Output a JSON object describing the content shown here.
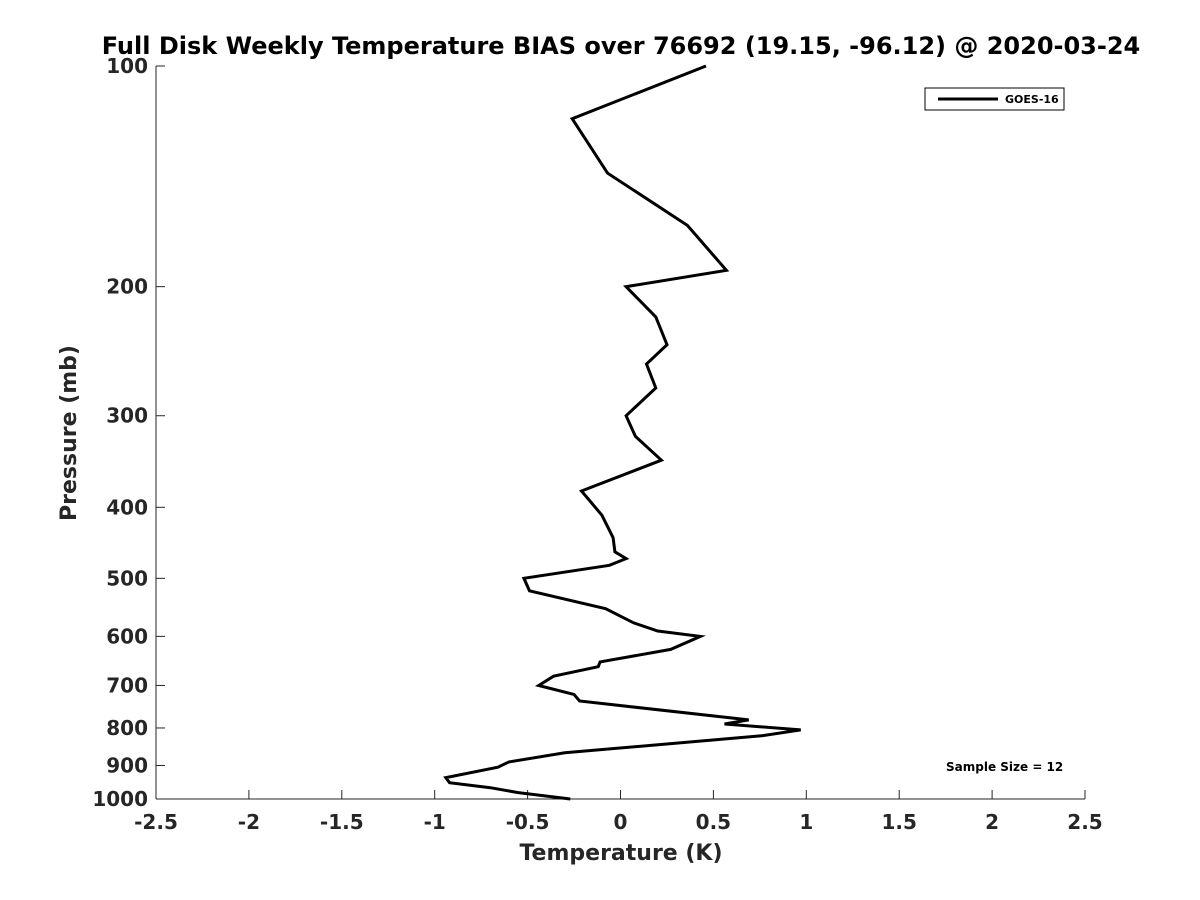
{
  "chart_data": {
    "type": "line",
    "title": "Full Disk Weekly Temperature BIAS over 76692 (19.15, -96.12) @ 2020-03-24",
    "xlabel": "Temperature (K)",
    "ylabel": "Pressure (mb)",
    "xlim": [
      -2.5,
      2.5
    ],
    "ylim": [
      100,
      1000
    ],
    "y_scale": "log",
    "y_reversed": true,
    "grid": false,
    "legend_position": "top-right",
    "x_ticks": [
      -2.5,
      -2,
      -1.5,
      -1,
      -0.5,
      0,
      0.5,
      1,
      1.5,
      2,
      2.5
    ],
    "x_tick_labels": [
      "-2.5",
      "-2",
      "-1.5",
      "-1",
      "-0.5",
      "0",
      "0.5",
      "1",
      "1.5",
      "2",
      "2.5"
    ],
    "y_ticks": [
      100,
      200,
      300,
      400,
      500,
      600,
      700,
      800,
      900,
      1000
    ],
    "y_tick_labels": [
      "100",
      "200",
      "300",
      "400",
      "500",
      "600",
      "700",
      "800",
      "900",
      "1000"
    ],
    "series": [
      {
        "name": "GOES-16",
        "color": "#000000",
        "points": [
          [
            0.46,
            100
          ],
          [
            -0.26,
            118
          ],
          [
            -0.07,
            140
          ],
          [
            0.36,
            165
          ],
          [
            0.57,
            190
          ],
          [
            0.03,
            200
          ],
          [
            0.19,
            220
          ],
          [
            0.25,
            240
          ],
          [
            0.14,
            255
          ],
          [
            0.19,
            275
          ],
          [
            0.03,
            300
          ],
          [
            0.08,
            320
          ],
          [
            0.22,
            345
          ],
          [
            -0.21,
            380
          ],
          [
            -0.1,
            410
          ],
          [
            -0.04,
            440
          ],
          [
            -0.03,
            460
          ],
          [
            0.03,
            470
          ],
          [
            -0.06,
            480
          ],
          [
            -0.52,
            500
          ],
          [
            -0.49,
            520
          ],
          [
            -0.08,
            550
          ],
          [
            0.07,
            575
          ],
          [
            0.2,
            590
          ],
          [
            0.43,
            600
          ],
          [
            0.27,
            625
          ],
          [
            -0.11,
            650
          ],
          [
            -0.12,
            660
          ],
          [
            -0.36,
            680
          ],
          [
            -0.44,
            700
          ],
          [
            -0.25,
            720
          ],
          [
            -0.22,
            735
          ],
          [
            0.69,
            780
          ],
          [
            0.56,
            790
          ],
          [
            0.97,
            805
          ],
          [
            0.76,
            820
          ],
          [
            -0.3,
            865
          ],
          [
            -0.6,
            890
          ],
          [
            -0.66,
            905
          ],
          [
            -0.94,
            935
          ],
          [
            -0.92,
            950
          ],
          [
            -0.7,
            965
          ],
          [
            -0.55,
            980
          ],
          [
            -0.27,
            1000
          ]
        ]
      }
    ],
    "annotation": "Sample Size = 12"
  }
}
